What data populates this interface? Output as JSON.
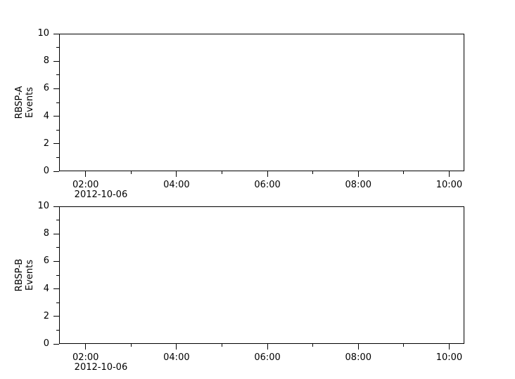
{
  "figure": {
    "background_color": "#ffffff",
    "axis_color": "#000000",
    "text_color": "#000000"
  },
  "chart_data": [
    {
      "type": "line",
      "title": "",
      "xlabel": "",
      "ylabel": "RBSP-A Events",
      "ylabel_lines": [
        "RBSP-A",
        "Events"
      ],
      "ylim": [
        0,
        10
      ],
      "y_ticks": [
        0,
        2,
        4,
        6,
        8,
        10
      ],
      "y_minor_ticks": [
        1,
        3,
        5,
        7,
        9
      ],
      "x_range": [
        "01:25",
        "10:20"
      ],
      "x_tick_labels": [
        "02:00",
        "04:00",
        "06:00",
        "08:00",
        "10:00"
      ],
      "x_minor_ticks": [
        "03:00",
        "05:00",
        "07:00",
        "09:00"
      ],
      "date_label": "2012-10-06",
      "grid": false,
      "legend": false,
      "series": []
    },
    {
      "type": "line",
      "title": "",
      "xlabel": "",
      "ylabel": "RBSP-B Events",
      "ylabel_lines": [
        "RBSP-B",
        "Events"
      ],
      "ylim": [
        0,
        10
      ],
      "y_ticks": [
        0,
        2,
        4,
        6,
        8,
        10
      ],
      "y_minor_ticks": [
        1,
        3,
        5,
        7,
        9
      ],
      "x_range": [
        "01:25",
        "10:20"
      ],
      "x_tick_labels": [
        "02:00",
        "04:00",
        "06:00",
        "08:00",
        "10:00"
      ],
      "x_minor_ticks": [
        "03:00",
        "05:00",
        "07:00",
        "09:00"
      ],
      "date_label": "2012-10-06",
      "grid": false,
      "legend": false,
      "series": []
    }
  ]
}
